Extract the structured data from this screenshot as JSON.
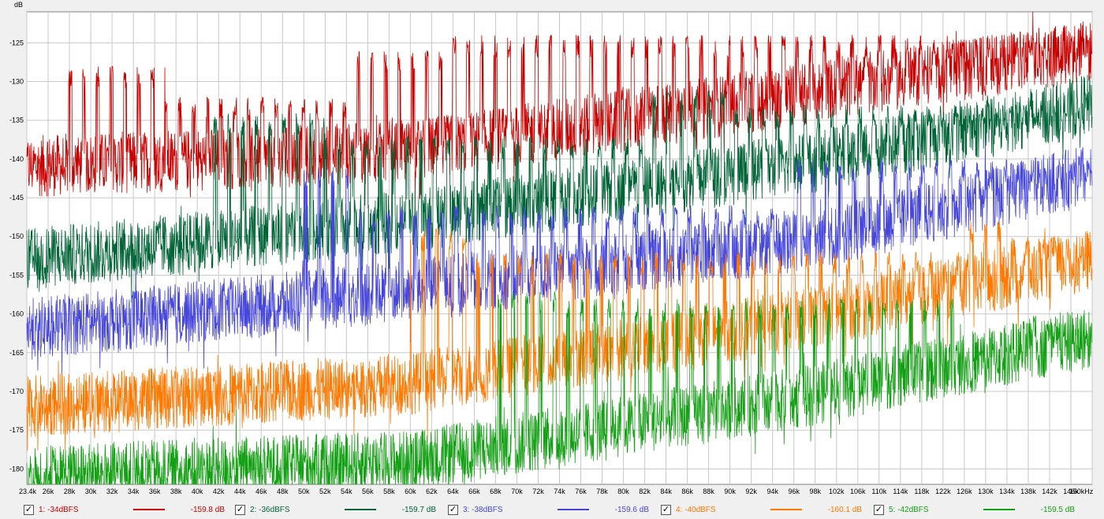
{
  "chart_data": {
    "type": "line",
    "ylabel": "dB",
    "xunit": "Hz",
    "ylim": [
      -182,
      -121
    ],
    "grid": true,
    "legend_placement": "bottom",
    "y_ticks": [
      -125,
      -130,
      -135,
      -140,
      -145,
      -150,
      -155,
      -160,
      -165,
      -170,
      -175,
      -180
    ],
    "x_tick_labels": [
      "23.4k",
      "26k",
      "28k",
      "30k",
      "32k",
      "34k",
      "36k",
      "38k",
      "40k",
      "42k",
      "44k",
      "46k",
      "48k",
      "50k",
      "52k",
      "54k",
      "56k",
      "58k",
      "60k",
      "62k",
      "64k",
      "66k",
      "68k",
      "70k",
      "72k",
      "74k",
      "76k",
      "78k",
      "80k",
      "82k",
      "84k",
      "86k",
      "88k",
      "90k",
      "92k",
      "94k",
      "96k",
      "98k",
      "102k",
      "106k",
      "110k",
      "114k",
      "118k",
      "122k",
      "126k",
      "130k",
      "134k",
      "138k",
      "142k",
      "146k",
      "150kHz"
    ],
    "series": [
      {
        "name": "1: -34dBFS",
        "value": "-159.8 dB",
        "color": "#c80000",
        "noise": [
          [
            23400,
            -141
          ],
          [
            60000,
            -139
          ],
          [
            100000,
            -131
          ],
          [
            150000,
            -126
          ]
        ],
        "tone_bands": [
          [
            27000,
            37000,
            -128
          ],
          [
            37000,
            55000,
            -132
          ],
          [
            55000,
            63000,
            -126
          ],
          [
            63000,
            150000,
            -124
          ]
        ]
      },
      {
        "name": "2: -36dBFS",
        "value": "-159.7 dB",
        "color": "#006437",
        "noise": [
          [
            23400,
            -153
          ],
          [
            60000,
            -148
          ],
          [
            100000,
            -140
          ],
          [
            150000,
            -133
          ]
        ],
        "tone_bands": [
          [
            41000,
            52000,
            -134
          ],
          [
            52000,
            82000,
            -137
          ],
          [
            82000,
            90000,
            -131
          ],
          [
            90000,
            150000,
            -133
          ]
        ]
      },
      {
        "name": "3: -38dBFS",
        "value": "-159.6 dB",
        "color": "#4646dc",
        "noise": [
          [
            23400,
            -162
          ],
          [
            60000,
            -157
          ],
          [
            100000,
            -150
          ],
          [
            150000,
            -142
          ]
        ],
        "tone_bands": [
          [
            50000,
            55000,
            -141
          ],
          [
            55000,
            96000,
            -146
          ],
          [
            96000,
            112000,
            -140
          ],
          [
            112000,
            150000,
            -140
          ]
        ]
      },
      {
        "name": "4: -40dBFS",
        "value": "-160.1 dB",
        "color": "#ff7800",
        "noise": [
          [
            23400,
            -172
          ],
          [
            60000,
            -169
          ],
          [
            100000,
            -160
          ],
          [
            150000,
            -153
          ]
        ],
        "tone_bands": [
          [
            60000,
            66000,
            -149
          ],
          [
            66000,
            126000,
            -152
          ],
          [
            126000,
            134000,
            -148
          ],
          [
            134000,
            150000,
            -150
          ]
        ]
      },
      {
        "name": "5: -42dBFS",
        "value": "-159.5 dB",
        "color": "#14a014",
        "noise": [
          [
            23400,
            -181
          ],
          [
            60000,
            -179
          ],
          [
            100000,
            -170
          ],
          [
            150000,
            -163
          ]
        ],
        "tone_bands": [
          [
            68000,
            74000,
            -157
          ],
          [
            74000,
            126000,
            -158
          ],
          [
            138000,
            144000,
            -160
          ]
        ]
      }
    ]
  }
}
